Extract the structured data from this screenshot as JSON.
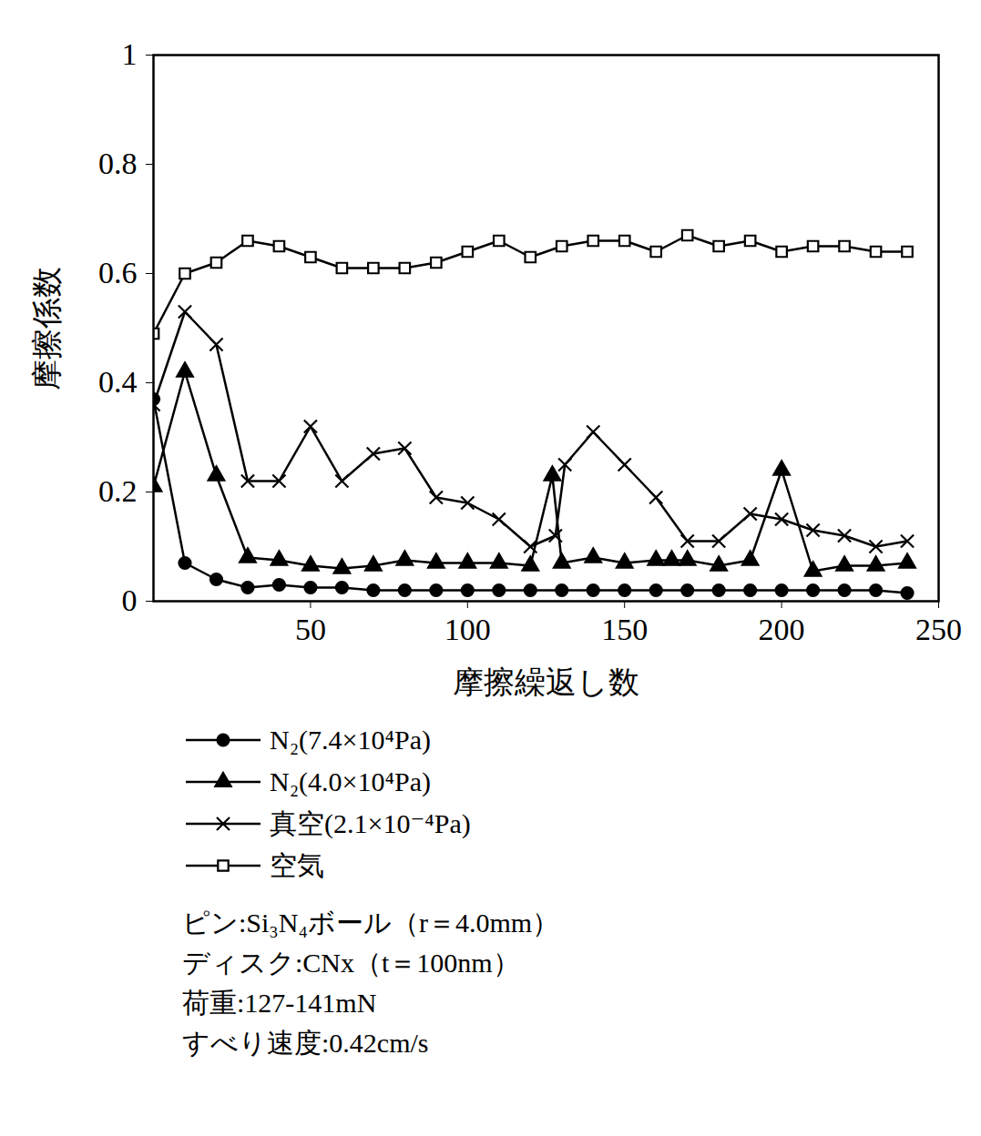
{
  "chart_data": {
    "type": "line",
    "xlabel": "摩擦繰返し数",
    "ylabel": "摩擦係数",
    "xlim": [
      0,
      250
    ],
    "xticks": [
      50,
      100,
      150,
      200,
      250
    ],
    "ylim": [
      0,
      1
    ],
    "yticks": [
      0,
      0.2,
      0.4,
      0.6,
      0.8,
      1
    ],
    "grid": false,
    "legend": "bottom",
    "series": [
      {
        "name": "N₂(7.4×10⁴Pa)",
        "color": "#000000",
        "marker": "circle",
        "x": [
          0,
          10,
          20,
          30,
          40,
          50,
          60,
          70,
          80,
          90,
          100,
          110,
          120,
          130,
          140,
          150,
          160,
          170,
          180,
          190,
          200,
          210,
          220,
          230,
          240
        ],
        "values": [
          0.37,
          0.07,
          0.04,
          0.025,
          0.03,
          0.025,
          0.025,
          0.02,
          0.02,
          0.02,
          0.02,
          0.02,
          0.02,
          0.02,
          0.02,
          0.02,
          0.02,
          0.02,
          0.02,
          0.02,
          0.02,
          0.02,
          0.02,
          0.02,
          0.015
        ]
      },
      {
        "name": "N₂(4.0×10⁴Pa)",
        "color": "#000000",
        "marker": "triangle",
        "x": [
          0,
          10,
          20,
          30,
          40,
          50,
          60,
          70,
          80,
          90,
          100,
          110,
          120,
          127,
          130,
          140,
          150,
          160,
          165,
          170,
          180,
          190,
          200,
          210,
          220,
          230,
          240
        ],
        "values": [
          0.21,
          0.42,
          0.23,
          0.08,
          0.075,
          0.065,
          0.06,
          0.065,
          0.075,
          0.07,
          0.07,
          0.07,
          0.065,
          0.23,
          0.07,
          0.08,
          0.07,
          0.075,
          0.075,
          0.075,
          0.065,
          0.075,
          0.24,
          0.055,
          0.065,
          0.065,
          0.07
        ]
      },
      {
        "name": "真空(2.1×10⁻⁴Pa)",
        "color": "#000000",
        "marker": "times",
        "x": [
          0,
          10,
          20,
          30,
          40,
          50,
          60,
          70,
          80,
          90,
          100,
          110,
          120,
          128,
          131,
          140,
          150,
          160,
          170,
          180,
          190,
          200,
          210,
          220,
          230,
          240
        ],
        "values": [
          0.36,
          0.53,
          0.47,
          0.22,
          0.22,
          0.32,
          0.22,
          0.27,
          0.28,
          0.19,
          0.18,
          0.15,
          0.1,
          0.12,
          0.25,
          0.31,
          0.25,
          0.19,
          0.11,
          0.11,
          0.16,
          0.15,
          0.13,
          0.12,
          0.1,
          0.11
        ]
      },
      {
        "name": "空気",
        "color": "#000000",
        "marker": "open-square",
        "x": [
          0,
          10,
          20,
          30,
          40,
          50,
          60,
          70,
          80,
          90,
          100,
          110,
          120,
          130,
          140,
          150,
          160,
          170,
          180,
          190,
          200,
          210,
          220,
          230,
          240
        ],
        "values": [
          0.49,
          0.6,
          0.62,
          0.66,
          0.65,
          0.63,
          0.61,
          0.61,
          0.61,
          0.62,
          0.64,
          0.66,
          0.63,
          0.65,
          0.66,
          0.66,
          0.64,
          0.67,
          0.65,
          0.66,
          0.64,
          0.65,
          0.65,
          0.64,
          0.64
        ]
      }
    ],
    "annotations": [
      "ピン:Si₃N₄ボール（r＝4.0mm）",
      "ディスク:CNx（t＝100nm）",
      "荷重:127-141mN",
      "すべり速度:0.42cm/s"
    ]
  }
}
